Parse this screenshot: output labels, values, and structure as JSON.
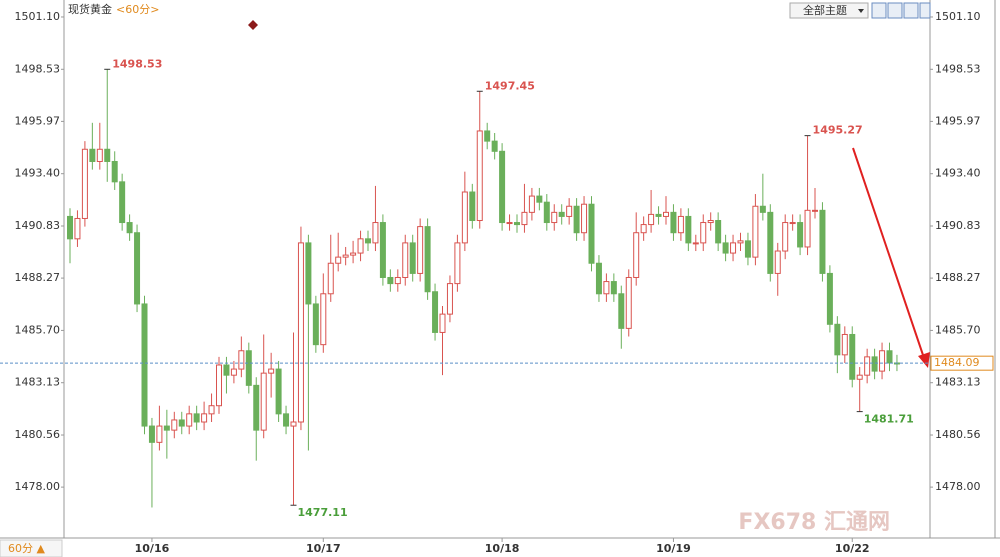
{
  "chart_data": {
    "type": "candlestick",
    "title": "现货黄金",
    "period": "<60分>",
    "theme_button": "全部主题",
    "period_selector": "60分 ▲",
    "watermark": "FX678 汇通网",
    "up_color": "#d9534f",
    "down_color": "#6aaf5a",
    "ylim": [
      1475.5,
      1501.9
    ],
    "yticks": [
      {
        "value": 1501.1,
        "label": "1501.10"
      },
      1498.53,
      1495.97,
      {
        "value": 1493.4,
        "label": "1493.40"
      },
      1490.83,
      1488.27,
      {
        "value": 1485.7,
        "label": "1485.70"
      },
      1483.13,
      1480.56,
      {
        "value": 1478,
        "label": "1478.00"
      }
    ],
    "grid": false,
    "categories": [
      null,
      null,
      null,
      null,
      null,
      null,
      null,
      null,
      null,
      null,
      null,
      "10/16",
      null,
      null,
      null,
      null,
      null,
      null,
      null,
      null,
      null,
      null,
      null,
      null,
      null,
      null,
      null,
      null,
      null,
      null,
      null,
      null,
      null,
      null,
      "10/17",
      null,
      null,
      null,
      null,
      null,
      null,
      null,
      null,
      null,
      null,
      null,
      null,
      null,
      null,
      null,
      null,
      null,
      null,
      null,
      null,
      null,
      null,
      null,
      "10/18",
      null,
      null,
      null,
      null,
      null,
      null,
      null,
      null,
      null,
      null,
      null,
      null,
      null,
      null,
      null,
      null,
      null,
      null,
      null,
      null,
      null,
      null,
      "10/19",
      null,
      null,
      null,
      null,
      null,
      null,
      null,
      null,
      null,
      null,
      null,
      null,
      null,
      null,
      null,
      null,
      null,
      null,
      null,
      null,
      null,
      null,
      null,
      "10/22",
      null,
      null,
      null,
      null,
      null,
      null
    ],
    "open": [
      1491.3,
      1490.2,
      1491.2,
      1494.6,
      1494.0,
      1494.6,
      1494.0,
      1493.0,
      1491.0,
      1490.5,
      1487.0,
      1481.0,
      1480.2,
      1481.0,
      1480.8,
      1481.3,
      1481.0,
      1481.6,
      1481.2,
      1481.6,
      1482.0,
      1484.0,
      1483.5,
      1483.8,
      1484.7,
      1483.0,
      1480.8,
      1483.6,
      1483.8,
      1481.6,
      1481.0,
      1481.2,
      1490.0,
      1487.0,
      1485.0,
      1487.5,
      1489.0,
      1489.3,
      1489.4,
      1489.5,
      1490.2,
      1490.0,
      1491.0,
      1488.3,
      1488.0,
      1488.3,
      1490.0,
      1488.5,
      1490.8,
      1487.6,
      1485.6,
      1486.5,
      1488.0,
      1490.0,
      1492.5,
      1491.1,
      1495.5,
      1495.0,
      1494.5,
      1491.0,
      1491.0,
      1490.9,
      1491.5,
      1492.3,
      1492.0,
      1491.0,
      1491.5,
      1491.3,
      1491.8,
      1490.5,
      1491.9,
      1489.0,
      1487.5,
      1488.1,
      1487.5,
      1485.8,
      1488.3,
      1490.5,
      1490.9,
      1491.4,
      1491.3,
      1491.5,
      1490.5,
      1491.3,
      1490.0,
      1490.0,
      1491.0,
      1491.1,
      1490.0,
      1489.5,
      1490.0,
      1490.1,
      1489.3,
      1491.8,
      1491.5,
      1488.5,
      1489.6,
      1491.0,
      1491.0,
      1489.8,
      1491.6,
      1491.6,
      1488.5,
      1486.0,
      1484.5,
      1485.5,
      1483.3,
      1483.5,
      1484.4,
      1483.7,
      1484.7,
      1484.1
    ],
    "high": [
      1491.7,
      1491.6,
      1495.0,
      1495.9,
      1495.9,
      1498.53,
      1494.5,
      1493.4,
      1491.4,
      1490.9,
      1487.4,
      1481.4,
      1482.0,
      1481.8,
      1481.7,
      1481.7,
      1482.0,
      1482.0,
      1482.2,
      1482.6,
      1484.4,
      1484.4,
      1484.2,
      1485.4,
      1485.1,
      1483.4,
      1485.5,
      1484.6,
      1484.2,
      1482.0,
      1485.6,
      1490.8,
      1490.4,
      1487.4,
      1488.5,
      1490.4,
      1490.5,
      1489.8,
      1490.1,
      1490.6,
      1490.6,
      1492.8,
      1491.4,
      1488.7,
      1488.7,
      1490.4,
      1490.4,
      1491.2,
      1491.2,
      1488.0,
      1486.9,
      1488.4,
      1490.4,
      1493.5,
      1492.9,
      1497.45,
      1495.9,
      1495.4,
      1494.9,
      1491.4,
      1491.4,
      1492.9,
      1492.7,
      1492.7,
      1492.4,
      1491.9,
      1491.9,
      1492.2,
      1492.2,
      1492.3,
      1492.3,
      1489.4,
      1488.5,
      1488.5,
      1487.9,
      1488.7,
      1491.5,
      1491.3,
      1492.6,
      1491.8,
      1492.3,
      1491.9,
      1491.7,
      1491.7,
      1490.4,
      1491.4,
      1491.5,
      1491.5,
      1490.4,
      1490.4,
      1490.5,
      1490.5,
      1492.4,
      1493.4,
      1491.9,
      1490.0,
      1491.4,
      1491.4,
      1491.4,
      1495.27,
      1492.7,
      1492.0,
      1488.9,
      1486.4,
      1485.9,
      1485.9,
      1483.9,
      1484.8,
      1484.8,
      1485.1,
      1485.1,
      1484.5
    ],
    "low": [
      1489.0,
      1489.8,
      1490.8,
      1493.6,
      1493.6,
      1493.0,
      1492.6,
      1490.6,
      1490.1,
      1486.6,
      1480.6,
      1477.0,
      1479.8,
      1479.4,
      1480.4,
      1480.6,
      1480.6,
      1480.8,
      1480.8,
      1481.2,
      1481.6,
      1482.6,
      1483.1,
      1483.4,
      1482.6,
      1479.3,
      1480.4,
      1482.4,
      1481.2,
      1480.6,
      1477.11,
      1480.8,
      1479.8,
      1484.6,
      1484.6,
      1487.1,
      1488.6,
      1488.9,
      1489.0,
      1489.1,
      1489.6,
      1489.6,
      1487.9,
      1487.6,
      1487.6,
      1487.9,
      1488.1,
      1488.1,
      1487.2,
      1485.2,
      1483.5,
      1486.1,
      1487.6,
      1489.6,
      1490.7,
      1490.7,
      1494.6,
      1494.1,
      1490.6,
      1490.6,
      1490.5,
      1490.5,
      1491.1,
      1491.6,
      1490.6,
      1490.6,
      1490.9,
      1490.9,
      1490.1,
      1490.1,
      1488.6,
      1487.1,
      1487.1,
      1487.1,
      1484.8,
      1485.4,
      1487.9,
      1490.1,
      1490.5,
      1490.9,
      1490.9,
      1490.1,
      1490.1,
      1489.6,
      1489.6,
      1489.6,
      1490.6,
      1489.6,
      1489.1,
      1489.1,
      1489.6,
      1488.9,
      1488.9,
      1491.1,
      1488.1,
      1487.4,
      1489.2,
      1490.6,
      1489.4,
      1489.4,
      1491.2,
      1488.1,
      1485.6,
      1483.6,
      1484.1,
      1482.9,
      1481.71,
      1483.1,
      1483.3,
      1483.3,
      1483.7,
      1483.7
    ],
    "close": [
      1490.2,
      1491.2,
      1494.6,
      1494.0,
      1494.6,
      1494.0,
      1493.0,
      1491.0,
      1490.5,
      1487.0,
      1481.0,
      1480.2,
      1481.0,
      1480.8,
      1481.3,
      1481.0,
      1481.6,
      1481.2,
      1481.6,
      1482.0,
      1484.0,
      1483.5,
      1483.8,
      1484.7,
      1483.0,
      1480.8,
      1483.6,
      1483.8,
      1481.6,
      1481.0,
      1481.2,
      1490.0,
      1487.0,
      1485.0,
      1487.5,
      1489.0,
      1489.3,
      1489.4,
      1489.5,
      1490.2,
      1490.0,
      1491.0,
      1488.3,
      1488.0,
      1488.3,
      1490.0,
      1488.5,
      1490.8,
      1487.6,
      1485.6,
      1486.5,
      1488.0,
      1490.0,
      1492.5,
      1491.1,
      1495.5,
      1495.0,
      1494.5,
      1491.0,
      1491.0,
      1490.9,
      1491.5,
      1492.3,
      1492.0,
      1491.0,
      1491.5,
      1491.3,
      1491.8,
      1490.5,
      1491.9,
      1489.0,
      1487.5,
      1488.1,
      1487.5,
      1485.8,
      1488.3,
      1490.5,
      1490.9,
      1491.4,
      1491.3,
      1491.5,
      1490.5,
      1491.3,
      1490.0,
      1490.0,
      1491.0,
      1491.1,
      1490.0,
      1489.5,
      1490.0,
      1490.1,
      1489.3,
      1491.8,
      1491.5,
      1488.5,
      1489.6,
      1491.0,
      1491.0,
      1489.8,
      1491.6,
      1491.6,
      1488.5,
      1486.0,
      1484.5,
      1485.5,
      1483.3,
      1483.5,
      1484.4,
      1483.7,
      1484.7,
      1484.1,
      1484.09
    ],
    "marked_highs": [
      1498.53,
      1497.45,
      1495.27
    ],
    "marked_lows": [
      1477.11,
      1481.71
    ]
  }
}
